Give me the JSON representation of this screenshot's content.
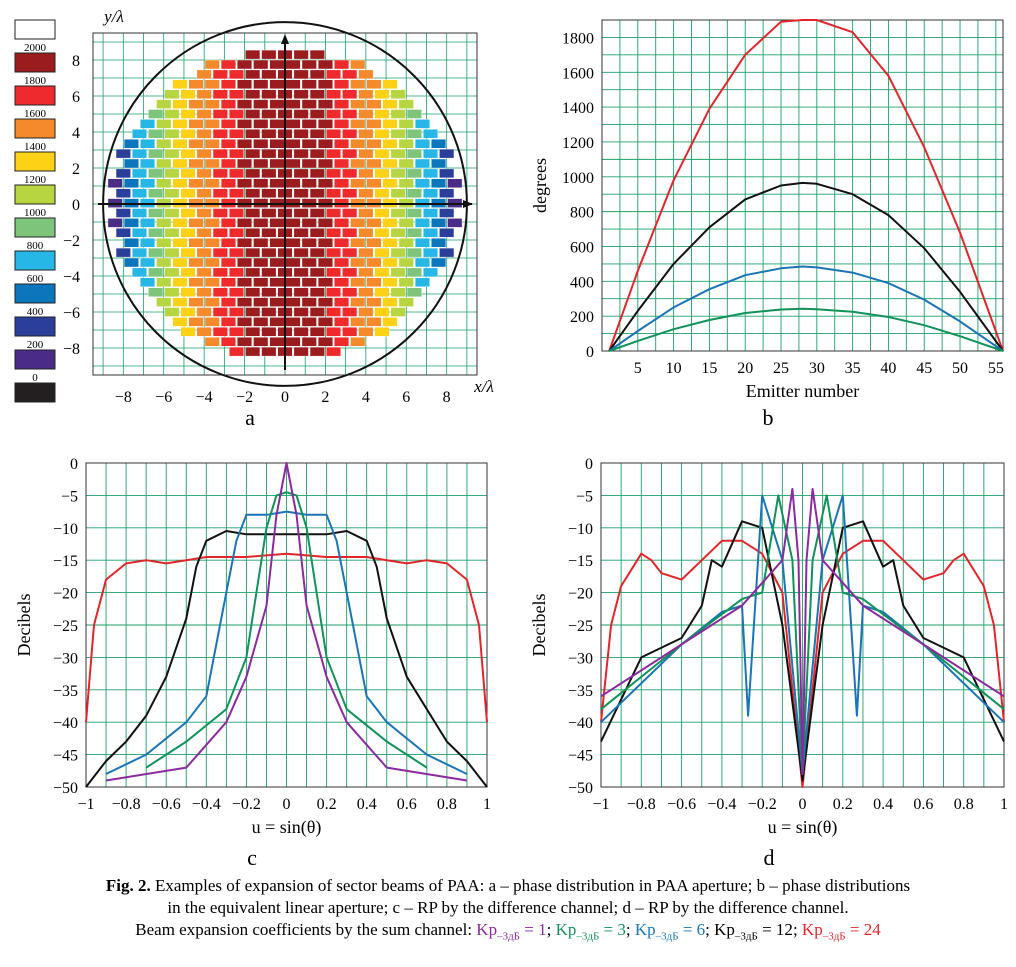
{
  "figure": {
    "panel_labels": [
      "a",
      "b",
      "c",
      "d"
    ],
    "caption": {
      "fig_label": "Fig. 2.",
      "line1": " Examples of expansion of sector beams of PAA: a – phase distribution in PAA aperture; b – phase distributions",
      "line2": "in the equivalent linear aperture; c – RP by the difference channel; d – RP by the difference channel.",
      "line3_prefix": "Beam expansion coefficients by the sum channel: ",
      "coeffs": [
        {
          "main": "Kp",
          "sub": "–3дБ",
          "val": " = 1",
          "sep": "; "
        },
        {
          "main": "Kp",
          "sub": "–3дБ",
          "val": " = 3",
          "sep": "; "
        },
        {
          "main": "Kp",
          "sub": "–3дБ",
          "val": " = 6",
          "sep": "; "
        },
        {
          "main": "Kp",
          "sub": "–3дБ",
          "val": " = 12",
          "sep": "; "
        },
        {
          "main": "Kp",
          "sub": "–3дБ",
          "val": " = 24",
          "sep": ""
        }
      ]
    }
  },
  "colors": {
    "purple": "#8b2a9e",
    "green": "#10925a",
    "blue": "#1a74b5",
    "black": "#111111",
    "red": "#e0262b",
    "grid": "#19a06a",
    "scale": [
      "#ffffff",
      "#9b1c1f",
      "#ee2a2c",
      "#f58a2c",
      "#fcd116",
      "#b7d441",
      "#7ec47b",
      "#27b7e6",
      "#0c76bd",
      "#2b3f9a",
      "#4a2b86",
      "#231f20"
    ]
  },
  "chart_data": [
    {
      "type": "heatmap",
      "panel": "a",
      "title": "",
      "xlabel": "x/λ",
      "ylabel": "y/λ",
      "xlim": [
        -9.5,
        9.5
      ],
      "ylim": [
        -9.5,
        9.5
      ],
      "x_ticks": [
        -8,
        -6,
        -4,
        -2,
        0,
        2,
        4,
        6,
        8
      ],
      "y_ticks": [
        8,
        6,
        4,
        2,
        0,
        -2,
        -4,
        -6,
        -8
      ],
      "aperture_radius": 9,
      "description_values": {
        "phase_max_deg": 2000,
        "phase_min_deg": 0
      },
      "colorbar": {
        "labels": [
          "2000",
          "1800",
          "1600",
          "1400",
          "1200",
          "1000",
          "800",
          "600",
          "400",
          "200",
          "0"
        ]
      }
    },
    {
      "type": "line",
      "panel": "b",
      "xlabel": "Emitter number",
      "ylabel": "degrees",
      "xlim": [
        0,
        56
      ],
      "ylim": [
        0,
        1900
      ],
      "x_ticks": [
        5,
        10,
        15,
        20,
        25,
        30,
        35,
        40,
        45,
        50,
        55
      ],
      "y_ticks": [
        0,
        200,
        400,
        600,
        800,
        1000,
        1200,
        1400,
        1600,
        1800
      ],
      "grid": true,
      "x": [
        1,
        5,
        10,
        15,
        20,
        25,
        28,
        30,
        35,
        40,
        45,
        50,
        56
      ],
      "series": [
        {
          "color": "red",
          "values": [
            0,
            460,
            980,
            1390,
            1700,
            1890,
            1930,
            1920,
            1830,
            1580,
            1170,
            680,
            0
          ]
        },
        {
          "color": "black",
          "values": [
            0,
            230,
            500,
            710,
            870,
            950,
            965,
            960,
            900,
            780,
            590,
            340,
            0
          ]
        },
        {
          "color": "blue",
          "values": [
            0,
            115,
            250,
            355,
            435,
            475,
            485,
            480,
            450,
            390,
            295,
            170,
            0
          ]
        },
        {
          "color": "green",
          "values": [
            0,
            58,
            125,
            178,
            218,
            238,
            242,
            240,
            225,
            195,
            148,
            85,
            0
          ]
        }
      ]
    },
    {
      "type": "line",
      "panel": "c",
      "xlabel": "u = sin(θ)",
      "ylabel": "Decibels",
      "xlim": [
        -1,
        1
      ],
      "ylim": [
        -50,
        0
      ],
      "x_ticks": [
        "−1",
        "−0.8",
        "−0.6",
        "−0.4",
        "−0.2",
        "0",
        "0.2",
        "0.4",
        "0.6",
        "0.8",
        "1"
      ],
      "y_ticks": [
        "0",
        "−5",
        "−10",
        "−15",
        "−20",
        "−25",
        "−30",
        "−35",
        "−40",
        "−45",
        "−50"
      ],
      "grid": true,
      "series": [
        {
          "color": "red",
          "x": [
            -1,
            -0.96,
            -0.9,
            -0.8,
            -0.7,
            -0.6,
            -0.5,
            -0.4,
            -0.2,
            0,
            0.2,
            0.4,
            0.5,
            0.6,
            0.7,
            0.8,
            0.9,
            0.96,
            1
          ],
          "values": [
            -40,
            -25,
            -18,
            -15.5,
            -15,
            -15.5,
            -15,
            -14.5,
            -14.5,
            -14,
            -14.5,
            -14.5,
            -15,
            -15.5,
            -15,
            -15.5,
            -18,
            -25,
            -40
          ]
        },
        {
          "color": "black",
          "x": [
            -1,
            -0.9,
            -0.8,
            -0.7,
            -0.6,
            -0.5,
            -0.45,
            -0.4,
            -0.3,
            -0.2,
            -0.1,
            0,
            0.1,
            0.2,
            0.3,
            0.4,
            0.45,
            0.5,
            0.6,
            0.7,
            0.8,
            0.9,
            1
          ],
          "values": [
            -50,
            -46,
            -43,
            -39,
            -33,
            -24,
            -16,
            -12,
            -10.5,
            -11,
            -11,
            -11,
            -11,
            -11,
            -10.5,
            -12,
            -16,
            -24,
            -33,
            -38,
            -43,
            -46,
            -50
          ]
        },
        {
          "color": "blue",
          "x": [
            -0.9,
            -0.7,
            -0.5,
            -0.4,
            -0.35,
            -0.3,
            -0.25,
            -0.2,
            -0.1,
            0,
            0.1,
            0.2,
            0.25,
            0.3,
            0.35,
            0.4,
            0.5,
            0.7,
            0.9
          ],
          "values": [
            -48,
            -45,
            -40,
            -36,
            -28,
            -20,
            -12,
            -8,
            -8,
            -7.5,
            -8,
            -8,
            -12,
            -20,
            -28,
            -36,
            -40,
            -45,
            -48
          ]
        },
        {
          "color": "green",
          "x": [
            -0.7,
            -0.5,
            -0.3,
            -0.2,
            -0.15,
            -0.1,
            -0.05,
            0,
            0.05,
            0.1,
            0.15,
            0.2,
            0.3,
            0.5,
            0.7
          ],
          "values": [
            -47,
            -43,
            -38,
            -30,
            -20,
            -10,
            -5,
            -4.5,
            -5,
            -10,
            -20,
            -30,
            -38,
            -43,
            -47
          ]
        },
        {
          "color": "purple",
          "x": [
            -0.9,
            -0.5,
            -0.3,
            -0.2,
            -0.1,
            -0.05,
            0,
            0.05,
            0.1,
            0.2,
            0.3,
            0.5,
            0.9
          ],
          "values": [
            -49,
            -47,
            -40,
            -33,
            -22,
            -8,
            0,
            -8,
            -22,
            -33,
            -40,
            -47,
            -49
          ]
        }
      ]
    },
    {
      "type": "line",
      "panel": "d",
      "xlabel": "u = sin(θ)",
      "ylabel": "Decibels",
      "xlim": [
        -1,
        1
      ],
      "ylim": [
        -50,
        0
      ],
      "x_ticks": [
        "−1",
        "−0.8",
        "−0.6",
        "−0.4",
        "−0.2",
        "0",
        "0.2",
        "0.4",
        "0.6",
        "0.8",
        "1"
      ],
      "y_ticks": [
        "0",
        "−5",
        "−10",
        "−15",
        "−20",
        "−25",
        "−30",
        "−35",
        "−40",
        "−45",
        "−50"
      ],
      "grid": true,
      "series": [
        {
          "color": "red",
          "x": [
            -1,
            -0.95,
            -0.9,
            -0.8,
            -0.75,
            -0.7,
            -0.6,
            -0.5,
            -0.4,
            -0.3,
            -0.2,
            -0.1,
            0,
            0.1,
            0.2,
            0.3,
            0.4,
            0.5,
            0.6,
            0.7,
            0.75,
            0.8,
            0.9,
            0.95,
            1
          ],
          "values": [
            -40,
            -25,
            -19,
            -14,
            -15,
            -17,
            -18,
            -15,
            -12,
            -12,
            -14,
            -20,
            -50,
            -20,
            -14,
            -12,
            -12,
            -15,
            -18,
            -17,
            -15,
            -14,
            -19,
            -25,
            -40
          ]
        },
        {
          "color": "black",
          "x": [
            -1,
            -0.8,
            -0.6,
            -0.5,
            -0.45,
            -0.4,
            -0.3,
            -0.2,
            -0.1,
            0,
            0.1,
            0.2,
            0.3,
            0.4,
            0.45,
            0.5,
            0.6,
            0.8,
            1
          ],
          "values": [
            -43,
            -30,
            -27,
            -22,
            -15,
            -16,
            -9,
            -10,
            -25,
            -49,
            -25,
            -10,
            -9,
            -16,
            -15,
            -22,
            -27,
            -30,
            -43
          ]
        },
        {
          "color": "blue",
          "x": [
            -1,
            -0.6,
            -0.4,
            -0.3,
            -0.27,
            -0.2,
            -0.1,
            0,
            0.1,
            0.2,
            0.27,
            0.3,
            0.4,
            0.6,
            1
          ],
          "values": [
            -40,
            -28,
            -23,
            -22,
            -39,
            -5,
            -15,
            -48,
            -15,
            -5,
            -39,
            -22,
            -23,
            -28,
            -40
          ]
        },
        {
          "color": "green",
          "x": [
            -1,
            -0.6,
            -0.3,
            -0.2,
            -0.12,
            -0.05,
            0,
            0.05,
            0.12,
            0.2,
            0.3,
            0.6,
            1
          ],
          "values": [
            -38,
            -28,
            -21,
            -20,
            -5,
            -15,
            -48,
            -15,
            -5,
            -20,
            -21,
            -28,
            -38
          ]
        },
        {
          "color": "purple",
          "x": [
            -1,
            -0.6,
            -0.3,
            -0.1,
            -0.05,
            -0.02,
            0,
            0.02,
            0.05,
            0.1,
            0.3,
            0.6,
            1
          ],
          "values": [
            -36,
            -28,
            -22,
            -15,
            -4,
            -15,
            -48,
            -15,
            -4,
            -15,
            -22,
            -28,
            -36
          ]
        }
      ]
    }
  ]
}
